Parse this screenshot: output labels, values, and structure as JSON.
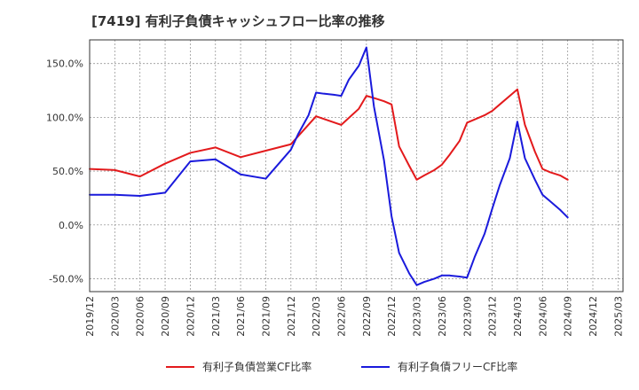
{
  "chart_data": {
    "type": "line",
    "title": "[7419]  有利子負債キャッシュフロー比率の推移",
    "xlabel": "",
    "ylabel": "",
    "ylim": [
      -62,
      172
    ],
    "yticks": [
      150,
      100,
      50,
      0,
      -50
    ],
    "ytick_labels": [
      "150.0%",
      "100.0%",
      "50.0%",
      "0.0%",
      "-50.0%"
    ],
    "x_tick_labels": [
      "2019/12",
      "2020/03",
      "2020/06",
      "2020/09",
      "2020/12",
      "2021/03",
      "2021/06",
      "2021/09",
      "2021/12",
      "2022/03",
      "2022/06",
      "2022/09",
      "2022/12",
      "2023/03",
      "2023/06",
      "2023/09",
      "2023/12",
      "2024/03",
      "2024/06",
      "2024/09",
      "2024/12",
      "2025/03"
    ],
    "grid": true,
    "legend_position": "bottom",
    "series": [
      {
        "name": "有利子負債営業CF比率",
        "color": "#e31a1c",
        "x": [
          0,
          1,
          2,
          3,
          4,
          5,
          6,
          7,
          8,
          9,
          10,
          10.7,
          11,
          11.3,
          11.7,
          12,
          12.3,
          12.7,
          13,
          13.3,
          13.7,
          14,
          14.3,
          14.7,
          15,
          15.3,
          15.7,
          16,
          16.3,
          16.7,
          17,
          17.3,
          17.7,
          18,
          18.3,
          18.7,
          19
        ],
        "values": [
          52,
          51,
          45,
          57,
          67,
          72,
          63,
          69,
          75,
          101,
          93,
          108,
          120,
          118,
          115,
          112,
          73,
          55,
          42,
          46,
          51,
          56,
          65,
          78,
          95,
          98,
          102,
          106,
          112,
          120,
          126,
          93,
          68,
          52,
          49,
          46,
          42
        ]
      },
      {
        "name": "有利子負債フリーCF比率",
        "color": "#1a1adc",
        "x": [
          0,
          1,
          2,
          3,
          4,
          5,
          6,
          7,
          8,
          8.3,
          8.7,
          9,
          9.3,
          9.7,
          10,
          10.3,
          10.7,
          11,
          11.3,
          11.7,
          12,
          12.3,
          12.7,
          13,
          13.3,
          13.7,
          14,
          14.3,
          14.7,
          15,
          15.3,
          15.7,
          16,
          16.3,
          16.7,
          17,
          17.3,
          17.7,
          18,
          18.3,
          18.7,
          19
        ],
        "values": [
          28,
          28,
          27,
          30,
          59,
          61,
          47,
          43,
          70,
          85,
          102,
          123,
          122,
          121,
          120,
          135,
          148,
          165,
          110,
          60,
          8,
          -26,
          -45,
          -56,
          -53,
          -50,
          -47,
          -47,
          -48,
          -49,
          -30,
          -8,
          15,
          37,
          62,
          96,
          62,
          42,
          28,
          22,
          14,
          7
        ]
      }
    ]
  }
}
